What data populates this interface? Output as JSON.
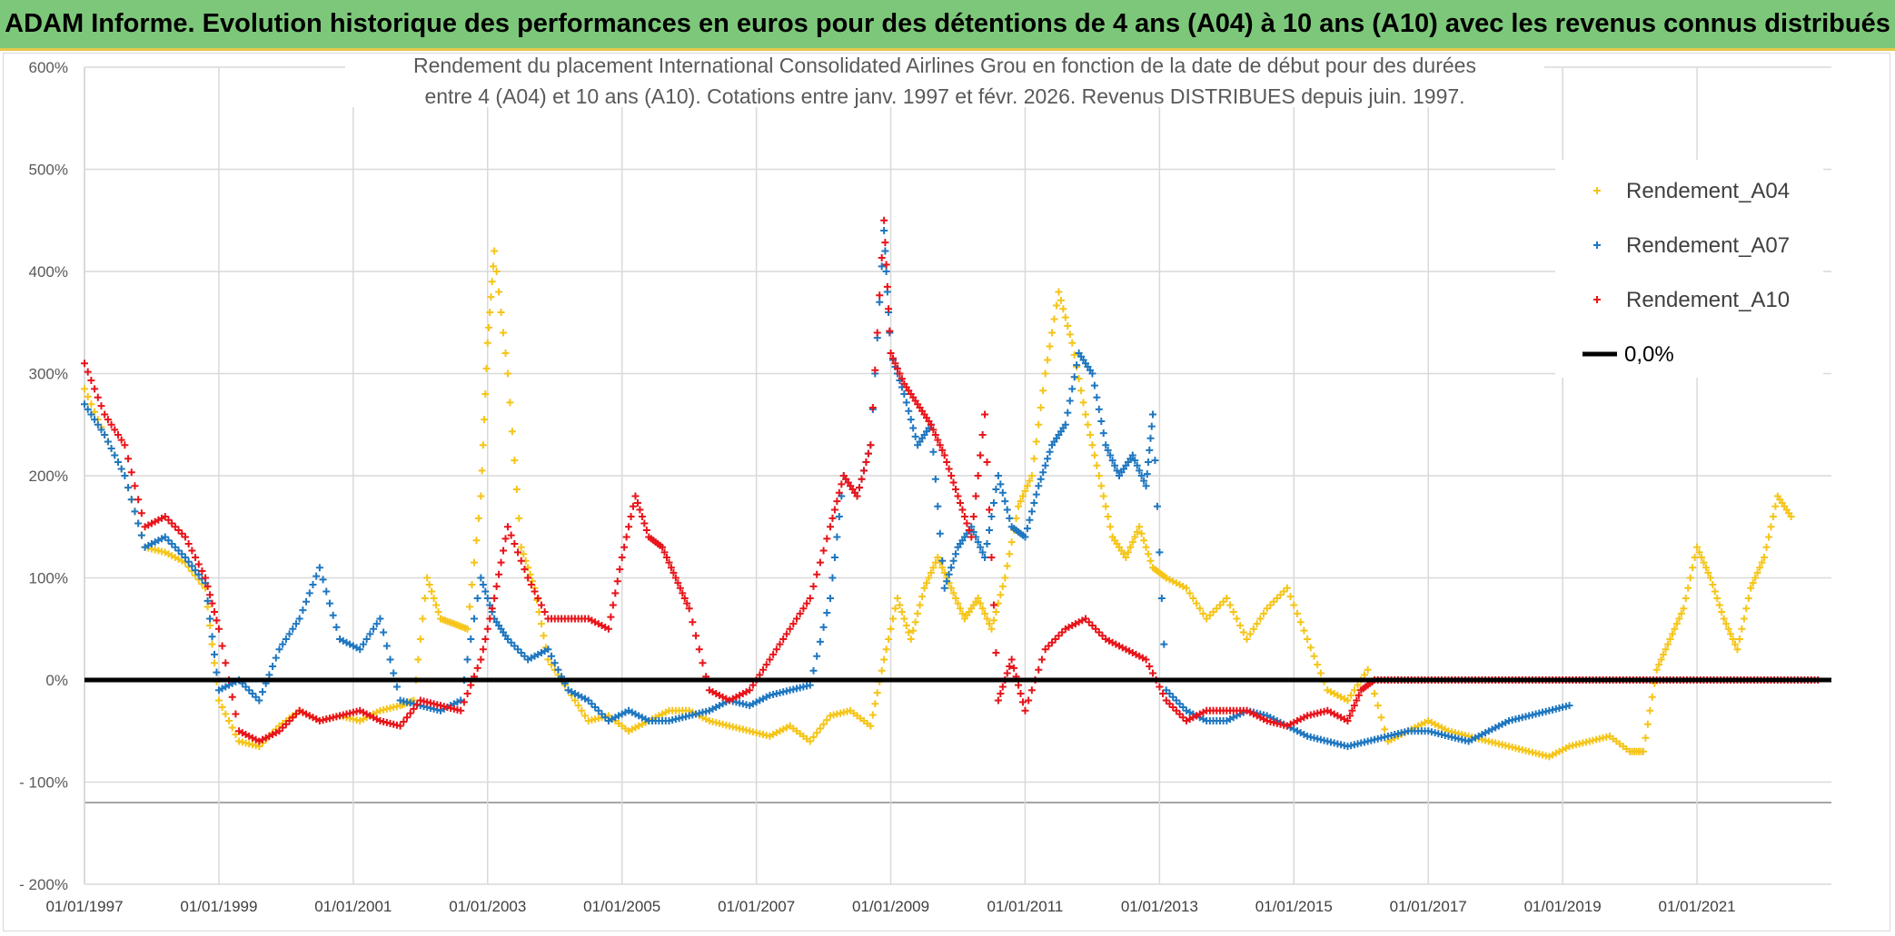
{
  "banner": {
    "title": "ADAM Informe. Evolution historique des performances en euros pour des détentions de 4 ans (A04) à 10 ans (A10) avec les revenus connus distribués"
  },
  "colors": {
    "banner_bg": "#7dc77a",
    "A04": "#f5c518",
    "A07": "#1f77c0",
    "A10": "#e8141a",
    "zero_line": "#000000",
    "grid": "#d9d9d9"
  },
  "chart_data": {
    "type": "scatter",
    "title_lines": [
      "Rendement du placement International Consolidated Airlines Grou en fonction de la date de début pour des durées",
      "entre 4 (A04) et 10 ans (A10). Cotations entre janv. 1997 et févr. 2026. Revenus DISTRIBUES depuis juin. 1997."
    ],
    "x_ticks": [
      "01/01/1997",
      "01/01/1999",
      "01/01/2001",
      "01/01/2003",
      "01/01/2005",
      "01/01/2007",
      "01/01/2009",
      "01/01/2011",
      "01/01/2013",
      "01/01/2015",
      "01/01/2017",
      "01/01/2019",
      "01/01/2021"
    ],
    "xlim": [
      1997.0,
      2023.0
    ],
    "y_ticks": [
      600,
      500,
      400,
      300,
      200,
      100,
      0,
      -100,
      -200
    ],
    "y_tick_labels": [
      "600%",
      "500%",
      "400%",
      "300%",
      "200%",
      "100%",
      "0%",
      "- 100%",
      "- 200%"
    ],
    "ylim": [
      -200,
      600
    ],
    "legend": [
      {
        "name": "Rendement_A04",
        "key": "A04",
        "marker": "+"
      },
      {
        "name": "Rendement_A07",
        "key": "A07",
        "marker": "+"
      },
      {
        "name": "Rendement_A10",
        "key": "A10",
        "marker": "+"
      },
      {
        "name": "0,0%",
        "key": "zero",
        "marker": "line"
      }
    ],
    "legend_position": "top-right",
    "series": [
      {
        "name": "Rendement_A04",
        "key": "A04",
        "x": [
          1997.0,
          1997.3,
          1997.6,
          1997.9,
          1998.2,
          1998.5,
          1998.8,
          1999.0,
          1999.3,
          1999.6,
          1999.9,
          2000.2,
          2000.5,
          2000.8,
          2001.1,
          2001.4,
          2001.7,
          2001.9,
          2002.1,
          2002.3,
          2002.5,
          2002.7,
          2002.9,
          2003.0,
          2003.1,
          2003.3,
          2003.5,
          2003.7,
          2003.9,
          2004.2,
          2004.5,
          2004.8,
          2005.1,
          2005.4,
          2005.7,
          2006.0,
          2006.3,
          2006.6,
          2006.9,
          2007.2,
          2007.5,
          2007.8,
          2008.1,
          2008.4,
          2008.7,
          2008.9,
          2009.1,
          2009.3,
          2009.5,
          2009.7,
          2009.9,
          2010.1,
          2010.3,
          2010.5,
          2010.7,
          2010.9,
          2011.1,
          2011.3,
          2011.5,
          2011.7,
          2011.9,
          2012.1,
          2012.3,
          2012.5,
          2012.7,
          2012.9,
          2013.1,
          2013.4,
          2013.7,
          2014.0,
          2014.3,
          2014.6,
          2014.9,
          2015.2,
          2015.5,
          2015.8,
          2016.1,
          2016.4,
          2016.7,
          2017.0,
          2017.3,
          2017.6,
          2017.9,
          2018.2,
          2018.5,
          2018.8,
          2019.1,
          2019.4,
          2019.7,
          2020.0,
          2020.2,
          2020.4,
          2020.6,
          2020.8,
          2021.0,
          2021.2,
          2021.4,
          2021.6,
          2021.8,
          2022.0,
          2022.2,
          2022.4
        ],
        "y": [
          285,
          240,
          200,
          130,
          125,
          115,
          90,
          -20,
          -60,
          -65,
          -45,
          -30,
          -40,
          -35,
          -40,
          -30,
          -25,
          -20,
          100,
          60,
          55,
          50,
          180,
          330,
          420,
          300,
          130,
          90,
          20,
          -10,
          -40,
          -35,
          -50,
          -40,
          -30,
          -30,
          -40,
          -45,
          -50,
          -55,
          -45,
          -60,
          -35,
          -30,
          -45,
          20,
          80,
          40,
          90,
          120,
          90,
          60,
          80,
          50,
          100,
          170,
          200,
          300,
          380,
          330,
          260,
          200,
          140,
          120,
          150,
          110,
          100,
          90,
          60,
          80,
          40,
          70,
          90,
          40,
          -10,
          -20,
          10,
          -60,
          -50,
          -40,
          -50,
          -55,
          -60,
          -65,
          -70,
          -75,
          -65,
          -60,
          -55,
          -70,
          -70,
          10,
          40,
          70,
          130,
          100,
          60,
          30,
          90,
          120,
          180,
          160
        ]
      },
      {
        "name": "Rendement_A07",
        "key": "A07",
        "x": [
          1997.0,
          1997.3,
          1997.6,
          1997.9,
          1998.2,
          1998.5,
          1998.8,
          1999.0,
          1999.3,
          1999.6,
          1999.9,
          2000.2,
          2000.5,
          2000.8,
          2001.1,
          2001.4,
          2001.7,
          2002.0,
          2002.3,
          2002.6,
          2002.9,
          2003.1,
          2003.3,
          2003.6,
          2003.9,
          2004.2,
          2004.5,
          2004.8,
          2005.1,
          2005.4,
          2005.7,
          2006.0,
          2006.3,
          2006.6,
          2006.9,
          2007.2,
          2007.5,
          2007.8,
          2008.1,
          2008.3,
          2008.5,
          2008.7,
          2008.9,
          2009.0,
          2009.2,
          2009.4,
          2009.6,
          2009.8,
          2010.0,
          2010.2,
          2010.4,
          2010.6,
          2010.8,
          2011.0,
          2011.2,
          2011.4,
          2011.6,
          2011.8,
          2012.0,
          2012.2,
          2012.4,
          2012.6,
          2012.8,
          2012.9,
          2013.1,
          2013.4,
          2013.7,
          2014.0,
          2014.3,
          2014.6,
          2014.9,
          2015.2,
          2015.5,
          2015.8,
          2016.1,
          2016.4,
          2016.7,
          2017.0,
          2017.3,
          2017.6,
          2017.9,
          2018.2,
          2018.5,
          2018.8,
          2019.1
        ],
        "y": [
          270,
          240,
          200,
          130,
          140,
          120,
          95,
          -10,
          0,
          -20,
          30,
          60,
          110,
          40,
          30,
          60,
          -20,
          -25,
          -30,
          -20,
          100,
          60,
          40,
          20,
          30,
          -10,
          -20,
          -40,
          -30,
          -40,
          -40,
          -35,
          -30,
          -20,
          -25,
          -15,
          -10,
          -5,
          80,
          200,
          180,
          230,
          440,
          320,
          280,
          230,
          250,
          90,
          130,
          150,
          120,
          200,
          150,
          140,
          190,
          230,
          250,
          320,
          300,
          230,
          200,
          220,
          190,
          260,
          -10,
          -30,
          -40,
          -40,
          -30,
          -35,
          -45,
          -55,
          -60,
          -65,
          -60,
          -55,
          -50,
          -50,
          -55,
          -60,
          -50,
          -40,
          -35,
          -30,
          -25
        ]
      },
      {
        "name": "Rendement_A10",
        "key": "A10",
        "x": [
          1997.0,
          1997.3,
          1997.6,
          1997.9,
          1998.2,
          1998.5,
          1998.8,
          1999.0,
          1999.3,
          1999.6,
          1999.9,
          2000.2,
          2000.5,
          2000.8,
          2001.1,
          2001.4,
          2001.7,
          2002.0,
          2002.3,
          2002.6,
          2002.9,
          2003.1,
          2003.3,
          2003.6,
          2003.9,
          2004.2,
          2004.5,
          2004.8,
          2005.0,
          2005.2,
          2005.4,
          2005.6,
          2005.8,
          2006.0,
          2006.3,
          2006.6,
          2006.9,
          2007.2,
          2007.5,
          2007.8,
          2008.1,
          2008.3,
          2008.5,
          2008.7,
          2008.9,
          2009.0,
          2009.2,
          2009.4,
          2009.6,
          2009.8,
          2010.0,
          2010.2,
          2010.4,
          2010.6,
          2010.8,
          2011.0,
          2011.3,
          2011.6,
          2011.9,
          2012.2,
          2012.5,
          2012.8,
          2013.1,
          2013.4,
          2013.7,
          2014.0,
          2014.3,
          2014.6,
          2014.9,
          2015.2,
          2015.5,
          2015.8,
          2016.0,
          2016.2,
          2016.5,
          2016.8,
          2017.1,
          2017.4,
          2017.7,
          2018.0,
          2018.3,
          2018.6,
          2018.9,
          2019.2,
          2019.5,
          2019.8,
          2020.1,
          2020.4,
          2020.7,
          2021.0,
          2021.3,
          2021.6,
          2021.9,
          2022.2,
          2022.5,
          2022.8
        ],
        "y": [
          310,
          260,
          230,
          150,
          160,
          140,
          100,
          50,
          -50,
          -60,
          -50,
          -30,
          -40,
          -35,
          -30,
          -40,
          -45,
          -20,
          -25,
          -30,
          20,
          80,
          150,
          100,
          60,
          60,
          60,
          50,
          120,
          180,
          140,
          130,
          100,
          70,
          -10,
          -20,
          -10,
          20,
          50,
          80,
          150,
          200,
          180,
          230,
          450,
          320,
          290,
          270,
          250,
          220,
          180,
          140,
          260,
          -20,
          20,
          -30,
          30,
          50,
          60,
          40,
          30,
          20,
          -20,
          -40,
          -30,
          -30,
          -30,
          -40,
          -45,
          -35,
          -30,
          -40,
          -10,
          0,
          0,
          0,
          0,
          0,
          0,
          0,
          0,
          0,
          0,
          0,
          0,
          0,
          0,
          0,
          0,
          0,
          0,
          0,
          0,
          0,
          0,
          0
        ]
      }
    ],
    "reference_line": {
      "value": 0,
      "label": "0,0%",
      "x_range": [
        1997.0,
        2023.0
      ]
    },
    "extra_horizontal_line": -120
  }
}
